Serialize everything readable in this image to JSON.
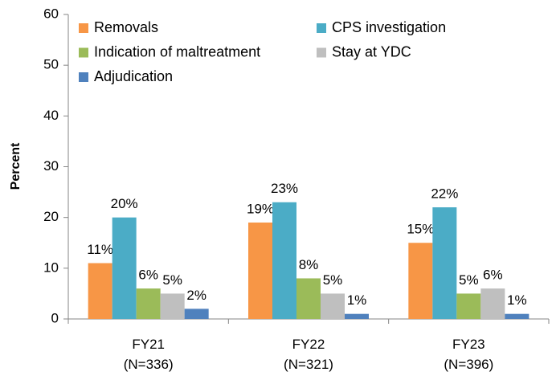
{
  "chart_data": {
    "type": "bar",
    "y_label": "Percent",
    "categories": [
      [
        "FY21",
        "(N=336)"
      ],
      [
        "FY22",
        "(N=321)"
      ],
      [
        "FY23",
        "(N=396)"
      ]
    ],
    "series": [
      {
        "name": "Removals",
        "color": "#F79646",
        "values": [
          11,
          19,
          15
        ],
        "value_labels": [
          "11%",
          "19%",
          "15%"
        ]
      },
      {
        "name": "CPS investigation",
        "color": "#4BACC6",
        "values": [
          20,
          23,
          22
        ],
        "value_labels": [
          "20%",
          "23%",
          "22%"
        ]
      },
      {
        "name": "Indication of maltreatment",
        "color": "#9BBB59",
        "values": [
          6,
          8,
          5
        ],
        "value_labels": [
          "6%",
          "8%",
          "5%"
        ]
      },
      {
        "name": "Stay at YDC",
        "color": "#BFBFBF",
        "values": [
          5,
          5,
          6
        ],
        "value_labels": [
          "5%",
          "5%",
          "6%"
        ]
      },
      {
        "name": "Adjudication",
        "color": "#4F81BD",
        "values": [
          2,
          1,
          1
        ],
        "value_labels": [
          "2%",
          "1%",
          "1%"
        ]
      }
    ],
    "ylim": [
      0,
      60
    ],
    "yticks": [
      0,
      10,
      20,
      30,
      40,
      50,
      60
    ],
    "grid": false,
    "legend": "upper left"
  }
}
